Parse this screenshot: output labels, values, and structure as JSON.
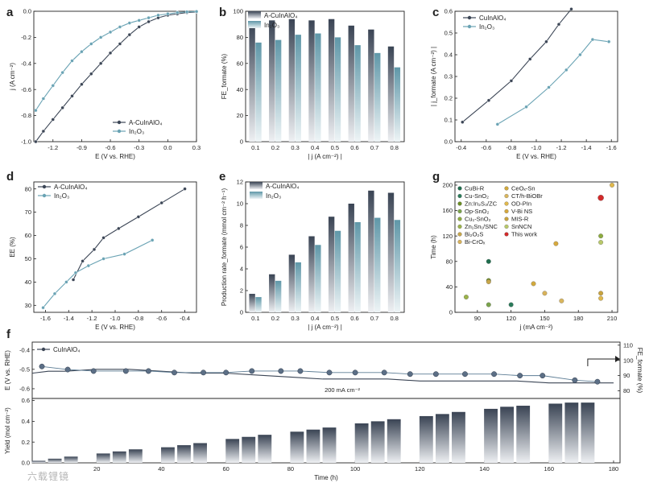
{
  "panels": {
    "a": {
      "letter": "a"
    },
    "b": {
      "letter": "b"
    },
    "c": {
      "letter": "c"
    },
    "d": {
      "letter": "d"
    },
    "e": {
      "letter": "e"
    },
    "f": {
      "letter": "f"
    },
    "g": {
      "letter": "g"
    }
  },
  "watermark": "六载锂镜",
  "colors": {
    "dark_series": "#3c4656",
    "light_series": "#6aa3b4",
    "this_work": "#d22a2a",
    "axis": "#222222"
  },
  "chart_data": [
    {
      "id": "a",
      "type": "line",
      "xlabel": "E (V vs. RHE)",
      "ylabel": "j (A cm⁻²)",
      "xlim": [
        -1.4,
        0.3
      ],
      "ylim": [
        -1.0,
        0.0
      ],
      "xticks": [
        "-1.2",
        "-0.9",
        "-0.6",
        "-0.3",
        "0.0",
        "0.3"
      ],
      "yticks": [
        "0.0",
        "-0.2",
        "-0.4",
        "-0.6",
        "-0.8",
        "-1.0"
      ],
      "legend": "bottom-right",
      "series": [
        {
          "name": "A-CuInAlO₄",
          "color": "dark",
          "x": [
            -1.38,
            -1.3,
            -1.2,
            -1.1,
            -1.0,
            -0.9,
            -0.8,
            -0.7,
            -0.6,
            -0.5,
            -0.4,
            -0.3,
            -0.2,
            -0.1,
            0.0,
            0.1,
            0.2,
            0.3
          ],
          "y": [
            -1.0,
            -0.92,
            -0.83,
            -0.74,
            -0.65,
            -0.56,
            -0.48,
            -0.4,
            -0.32,
            -0.25,
            -0.18,
            -0.12,
            -0.08,
            -0.05,
            -0.03,
            -0.02,
            -0.01,
            -0.005
          ]
        },
        {
          "name": "In₂O₃",
          "color": "light",
          "x": [
            -1.38,
            -1.3,
            -1.2,
            -1.1,
            -1.0,
            -0.9,
            -0.8,
            -0.7,
            -0.6,
            -0.5,
            -0.4,
            -0.3,
            -0.2,
            -0.1,
            0.0,
            0.1,
            0.2,
            0.3
          ],
          "y": [
            -0.76,
            -0.67,
            -0.57,
            -0.47,
            -0.38,
            -0.31,
            -0.25,
            -0.2,
            -0.16,
            -0.12,
            -0.09,
            -0.07,
            -0.05,
            -0.03,
            -0.02,
            -0.01,
            -0.005,
            -0.002
          ]
        }
      ]
    },
    {
      "id": "b",
      "type": "bar",
      "xlabel": "| j (A cm⁻²) |",
      "ylabel": "FE_formate (%)",
      "ylim": [
        0,
        100
      ],
      "yticks": [
        "0",
        "20",
        "40",
        "60",
        "80",
        "100"
      ],
      "categories": [
        "0.1",
        "0.2",
        "0.3",
        "0.4",
        "0.5",
        "0.6",
        "0.7",
        "0.8"
      ],
      "legend": "top-left",
      "series": [
        {
          "name": "A-CuInAlO₄",
          "color": "dark",
          "values": [
            90,
            93,
            94,
            93,
            94,
            89,
            86,
            73
          ]
        },
        {
          "name": "In₂O₃",
          "color": "light",
          "values": [
            76,
            78,
            82,
            83,
            80,
            74,
            68,
            57
          ]
        }
      ]
    },
    {
      "id": "c",
      "type": "line",
      "xlabel": "E (V vs. RHE)",
      "ylabel": "| j_formate (A cm⁻²) |",
      "xlim": [
        -0.35,
        -1.65
      ],
      "ylim": [
        0.0,
        0.6
      ],
      "xticks": [
        "-0.4",
        "-0.6",
        "-0.8",
        "-1.0",
        "-1.2",
        "-1.4",
        "-1.6"
      ],
      "yticks": [
        "0.0",
        "0.1",
        "0.2",
        "0.3",
        "0.4",
        "0.5",
        "0.6"
      ],
      "legend": "top-left",
      "series": [
        {
          "name": "CuInAlO₄",
          "color": "dark",
          "x": [
            -0.41,
            -0.62,
            -0.8,
            -0.95,
            -1.08,
            -1.18,
            -1.28
          ],
          "y": [
            0.09,
            0.19,
            0.28,
            0.38,
            0.46,
            0.54,
            0.61
          ]
        },
        {
          "name": "In₂O₃",
          "color": "light",
          "x": [
            -0.69,
            -0.92,
            -1.1,
            -1.24,
            -1.35,
            -1.45,
            -1.58
          ],
          "y": [
            0.08,
            0.16,
            0.25,
            0.33,
            0.4,
            0.47,
            0.46
          ]
        }
      ]
    },
    {
      "id": "d",
      "type": "line",
      "xlabel": "E (V vs. RHE)",
      "ylabel": "EE (%)",
      "xlim": [
        -1.7,
        -0.3
      ],
      "ylim": [
        27,
        83
      ],
      "xticks": [
        "-1.6",
        "-1.4",
        "-1.2",
        "-1.0",
        "-0.8",
        "-0.6",
        "-0.4"
      ],
      "yticks": [
        "30",
        "40",
        "50",
        "60",
        "70",
        "80"
      ],
      "legend": "top-left",
      "series": [
        {
          "name": "A-CuInAlO₄",
          "color": "dark",
          "x": [
            -1.36,
            -1.28,
            -1.18,
            -1.1,
            -0.97,
            -0.8,
            -0.6,
            -0.4
          ],
          "y": [
            41,
            49,
            54,
            59,
            63,
            68,
            74,
            80
          ]
        },
        {
          "name": "In₂O₃",
          "color": "light",
          "x": [
            -1.62,
            -1.52,
            -1.42,
            -1.34,
            -1.23,
            -1.1,
            -0.92,
            -0.68
          ],
          "y": [
            29,
            35,
            40,
            44,
            47,
            50,
            52,
            58
          ]
        }
      ]
    },
    {
      "id": "e",
      "type": "bar",
      "xlabel": "| j (A cm⁻²) |",
      "ylabel": "Production rate_formate (mmol cm⁻² h⁻¹)",
      "ylim": [
        0,
        12
      ],
      "yticks": [
        "0",
        "2",
        "4",
        "6",
        "8",
        "10",
        "12"
      ],
      "categories": [
        "0.1",
        "0.2",
        "0.3",
        "0.4",
        "0.5",
        "0.6",
        "0.7",
        "0.8"
      ],
      "legend": "top-left",
      "series": [
        {
          "name": "A-CuInAlO₄",
          "color": "dark",
          "values": [
            1.7,
            3.5,
            5.3,
            7.0,
            8.8,
            10.0,
            11.2,
            11.0
          ]
        },
        {
          "name": "In₂O₃",
          "color": "light",
          "values": [
            1.4,
            2.9,
            4.6,
            6.2,
            7.5,
            8.3,
            8.7,
            8.5
          ]
        }
      ]
    },
    {
      "id": "g",
      "type": "scatter",
      "xlabel": "j (mA cm⁻²)",
      "ylabel": "Time (h)",
      "xlim": [
        70,
        215
      ],
      "ylim": [
        0,
        205
      ],
      "xticks": [
        "90",
        "120",
        "150",
        "180",
        "210"
      ],
      "yticks": [
        "0",
        "40",
        "80",
        "120",
        "160",
        "200"
      ],
      "legend": "top-left",
      "series": [
        {
          "name": "CuBi-R",
          "color": "#1f6e4e",
          "x": [
            100
          ],
          "y": [
            80
          ]
        },
        {
          "name": "Cu-SnO₂",
          "color": "#2a7b5a",
          "x": [
            120
          ],
          "y": [
            12
          ]
        },
        {
          "name": "Zn:In₂S₃/ZC",
          "color": "#6b8e23",
          "x": [
            100
          ],
          "y": [
            50
          ]
        },
        {
          "name": "Op-SnO₂",
          "color": "#7aa34c",
          "x": [
            100
          ],
          "y": [
            12
          ]
        },
        {
          "name": "Cu₁-SnO₂",
          "color": "#8dab3f",
          "x": [
            200
          ],
          "y": [
            120
          ]
        },
        {
          "name": "Zn₁Sn₁/SNC",
          "color": "#9bb34a",
          "x": [
            80
          ],
          "y": [
            24
          ]
        },
        {
          "name": "Bi₂O₂S",
          "color": "#c7a64a",
          "x": [
            100
          ],
          "y": [
            48
          ]
        },
        {
          "name": "Bi-CrOₓ",
          "color": "#d8b25a",
          "x": [
            150
          ],
          "y": [
            30
          ]
        },
        {
          "name": "CeOₓ-Sn",
          "color": "#d1a93d",
          "x": [
            140
          ],
          "y": [
            45
          ]
        },
        {
          "name": "CT/h-BiOBr",
          "color": "#d9b65e",
          "x": [
            165
          ],
          "y": [
            18
          ]
        },
        {
          "name": "OD-PIn",
          "color": "#e0b84c",
          "x": [
            200
          ],
          "y": [
            22
          ]
        },
        {
          "name": "V-Bi NS",
          "color": "#d6a93e",
          "x": [
            160
          ],
          "y": [
            108
          ]
        },
        {
          "name": "MIS-R",
          "color": "#c8a33e",
          "x": [
            200
          ],
          "y": [
            30
          ]
        },
        {
          "name": "SnNCN",
          "color": "#b9c96a",
          "x": [
            200
          ],
          "y": [
            110
          ]
        },
        {
          "name": "This work",
          "color": "#d22a2a",
          "x": [
            200
          ],
          "y": [
            180
          ]
        },
        {
          "name": "",
          "color": "#e0b84c",
          "x": [
            210
          ],
          "y": [
            200
          ]
        }
      ]
    },
    {
      "id": "f",
      "type": "line",
      "xlabel": "Time (h)",
      "top": {
        "ylabel_left": "E (V vs. RHE)",
        "ylabel_right": "FE_formate (%)",
        "yticks_left": [
          "-0.4",
          "-0.5",
          "-0.6"
        ],
        "ylim_left": [
          -0.65,
          -0.36
        ],
        "yticks_right": [
          "80",
          "90",
          "100",
          "110"
        ],
        "ylim_right": [
          75,
          112
        ],
        "legend": "top-left",
        "annotation": "200 mA cm⁻²",
        "series": [
          {
            "name": "CuInAlO₄",
            "color": "dark",
            "kind": "potential",
            "x": [
              0,
              5,
              10,
              20,
              30,
              40,
              50,
              60,
              70,
              80,
              90,
              100,
              110,
              120,
              130,
              140,
              150,
              160,
              170,
              180
            ],
            "y": [
              -0.52,
              -0.51,
              -0.51,
              -0.5,
              -0.5,
              -0.51,
              -0.52,
              -0.52,
              -0.53,
              -0.54,
              -0.55,
              -0.55,
              -0.55,
              -0.56,
              -0.56,
              -0.56,
              -0.56,
              -0.57,
              -0.57,
              -0.57
            ]
          },
          {
            "name": "",
            "color": "dark",
            "kind": "fe",
            "x": [
              3,
              11,
              19,
              29,
              36,
              44,
              53,
              60,
              68,
              77,
              83,
              92,
              100,
              109,
              117,
              125,
              134,
              143,
              151,
              158,
              168,
              175
            ],
            "y": [
              96,
              94,
              93,
              93,
              93,
              92,
              92,
              92,
              93,
              93,
              93,
              92,
              92,
              92,
              91,
              91,
              91,
              91,
              90,
              90,
              87,
              86
            ]
          }
        ]
      },
      "bottom": {
        "ylabel": "Yield (mol cm⁻²)",
        "ylim": [
          0,
          0.62
        ],
        "yticks": [
          "0.0",
          "0.2",
          "0.4",
          "0.6"
        ],
        "xlim": [
          0,
          182
        ],
        "xticks": [
          "20",
          "40",
          "60",
          "80",
          "100",
          "120",
          "140",
          "160",
          "180"
        ],
        "bars": {
          "x": [
            2,
            7,
            12,
            22,
            27,
            32,
            42,
            47,
            52,
            62,
            67,
            72,
            82,
            87,
            92,
            102,
            107,
            112,
            122,
            127,
            132,
            142,
            147,
            152,
            162,
            167,
            172
          ],
          "values": [
            0.02,
            0.04,
            0.06,
            0.09,
            0.11,
            0.13,
            0.15,
            0.17,
            0.19,
            0.23,
            0.25,
            0.27,
            0.3,
            0.32,
            0.34,
            0.38,
            0.4,
            0.42,
            0.45,
            0.47,
            0.49,
            0.52,
            0.54,
            0.55,
            0.57,
            0.58,
            0.58
          ]
        }
      }
    }
  ]
}
